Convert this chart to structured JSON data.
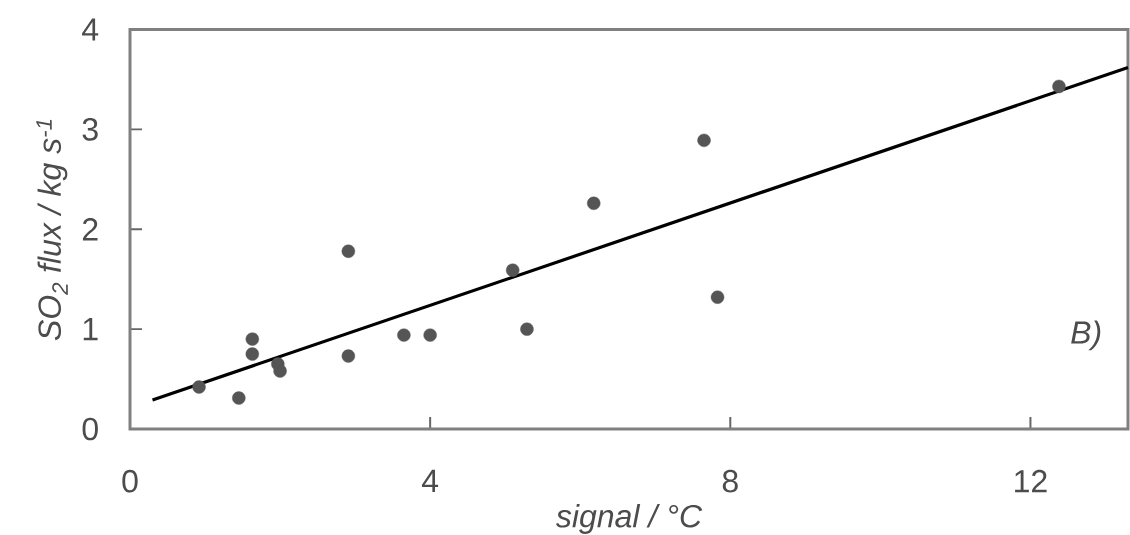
{
  "chart_data": {
    "type": "scatter",
    "xlabel": "signal / °C",
    "ylabel": "SO$_{2}$ flux / kg s$^{-1}$",
    "annotations": [
      "B)"
    ],
    "xlim": [
      0,
      13.3
    ],
    "ylim": [
      0,
      4
    ],
    "xticks": [
      0,
      4,
      8,
      12
    ],
    "yticks": [
      0,
      1,
      2,
      3,
      4
    ],
    "series": [
      {
        "marker": "circle",
        "color": "#555555",
        "x": [
          0.92,
          1.45,
          1.63,
          1.63,
          1.97,
          2.0,
          2.91,
          2.91,
          3.65,
          4.0,
          5.1,
          5.29,
          6.18,
          7.65,
          7.83,
          12.38
        ],
        "values": [
          0.42,
          0.31,
          0.9,
          0.75,
          0.65,
          0.58,
          1.78,
          0.73,
          0.94,
          0.94,
          1.59,
          1.0,
          2.26,
          2.89,
          1.32,
          3.43
        ]
      },
      {
        "type": "line",
        "color": "#000000",
        "marker": "none",
        "line_style": "solid",
        "x": [
          0.3,
          13.3
        ],
        "values": [
          0.29,
          3.62
        ]
      }
    ]
  }
}
